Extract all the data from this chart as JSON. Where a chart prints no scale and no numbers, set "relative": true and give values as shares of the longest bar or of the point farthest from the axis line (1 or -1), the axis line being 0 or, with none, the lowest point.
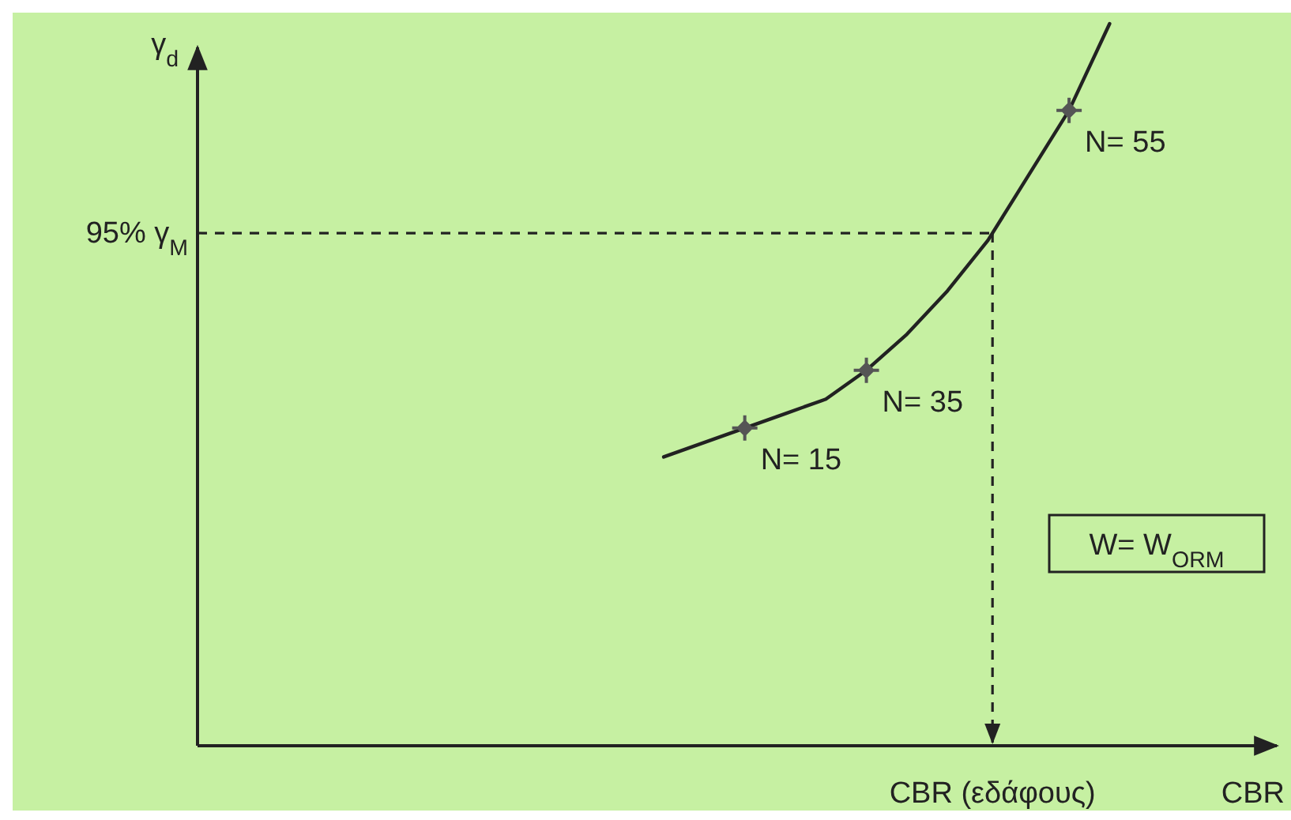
{
  "chart_data": {
    "type": "line",
    "relative": true,
    "xlabel": "CBR",
    "ylabel": "γ$_{d}$",
    "line_style": "solid",
    "categories": [
      null,
      null,
      null,
      null,
      null,
      null,
      null,
      null,
      null,
      null,
      null,
      null,
      null,
      null,
      null,
      null,
      null,
      null,
      null,
      null,
      null,
      null,
      null,
      null,
      null,
      null
    ],
    "series": [
      {
        "color": "#222222",
        "values": [
          null,
          null,
          null,
          null,
          null,
          null,
          null,
          null,
          null,
          null,
          null,
          0.4,
          0.42,
          0.44,
          0.46,
          0.48,
          0.52,
          0.57,
          0.63,
          0.7,
          0.79,
          0.88,
          1.0,
          null,
          null,
          null
        ]
      }
    ],
    "ref_lines": [
      {
        "axis": "y",
        "value": 0.71,
        "label": "95% γ$_{M}$",
        "line_style": "dashed",
        "color": "#222222"
      }
    ],
    "annotations": [
      "N= 15",
      "N= 35",
      "N= 55",
      "W= W$_{ORM}$",
      "CBR (εδάφους)"
    ]
  }
}
